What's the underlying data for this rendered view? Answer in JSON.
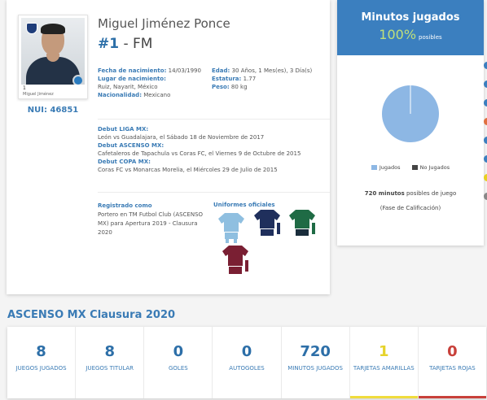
{
  "player": {
    "photo_number": "1",
    "photo_name": "Miguel Jiménez",
    "nui": "NUI: 46851",
    "name": "Miguel Jiménez Ponce",
    "number": "#1",
    "separator": " - ",
    "position": "FM"
  },
  "details": {
    "birth_date_label": "Fecha de nacimiento:",
    "birth_date": "14/03/1990",
    "birth_place_label": "Lugar de nacimiento:",
    "birth_place": "Ruiz, Nayarit, México",
    "nationality_label": "Nacionalidad:",
    "nationality": "Mexicano",
    "age_label": "Edad:",
    "age": "30 Años, 1 Mes(es), 3 Día(s)",
    "height_label": "Estatura:",
    "height": "1.77",
    "weight_label": "Peso:",
    "weight": "80 kg"
  },
  "debuts": {
    "liga_label": "Debut LIGA MX:",
    "liga": "León vs Guadalajara, el Sábado 18 de Noviembre de 2017",
    "ascenso_label": "Debut ASCENSO MX:",
    "ascenso": "Cafetaleros de Tapachula vs Coras FC, el Viernes 9 de Octubre de 2015",
    "copa_label": "Debut COPA MX:",
    "copa": "Coras FC vs Monarcas Morelia, el Miércoles 29 de Julio de 2015"
  },
  "registration": {
    "label": "Registrado como",
    "text": "Portero en TM Futbol Club (ASCENSO MX) para Apertura 2019 - Clausura 2020"
  },
  "uniforms": {
    "title": "Uniformes oficiales",
    "items": [
      {
        "name": "light-blue-uniform",
        "shirt": "#8fbfe0",
        "shorts": "#8fbfe0",
        "socks": "#8fbfe0"
      },
      {
        "name": "navy-uniform",
        "shirt": "#1f2f5c",
        "shorts": "#1f2f5c",
        "socks": "#1f2f5c"
      },
      {
        "name": "green-uniform",
        "shirt": "#1f6b45",
        "shorts": "#1a2d3c",
        "socks": "#1f6b45"
      },
      {
        "name": "maroon-uniform",
        "shirt": "#7a1f33",
        "shorts": "#7a1f33",
        "socks": "#7a1f33"
      }
    ]
  },
  "minutes": {
    "title": "Minutos jugados",
    "percent": "100%",
    "percent_label": "posibles",
    "legend_played": "Jugados",
    "legend_not_played": "No Jugados",
    "color_played": "#8db7e4",
    "color_not_played": "#444444",
    "possible_value": "720 minutos",
    "possible_text": " posibles de juego",
    "phase": "(Fase de Calificación)"
  },
  "chart_data": {
    "type": "pie",
    "slices": [
      {
        "label": "Jugados",
        "value": 100
      },
      {
        "label": "No Jugados",
        "value": 0
      }
    ],
    "legend_position": "bottom"
  },
  "side_dots": [
    "#3b7fbf",
    "#3b7fbf",
    "#3b7fbf",
    "#e07040",
    "#3b7fbf",
    "#3b7fbf",
    "#e8d020",
    "#888888"
  ],
  "season": {
    "title": "ASCENSO MX Clausura 2020",
    "stats": [
      {
        "value": "8",
        "label": "JUEGOS JUGADOS",
        "value_color": "#2d6fa8",
        "bar": ""
      },
      {
        "value": "8",
        "label": "JUEGOS TITULAR",
        "value_color": "#2d6fa8",
        "bar": ""
      },
      {
        "value": "0",
        "label": "GOLES",
        "value_color": "#2d6fa8",
        "bar": ""
      },
      {
        "value": "0",
        "label": "AUTOGOLES",
        "value_color": "#2d6fa8",
        "bar": ""
      },
      {
        "value": "720",
        "label": "MINUTOS JUGADOS",
        "value_color": "#2d6fa8",
        "bar": ""
      },
      {
        "value": "1",
        "label": "TARJETAS AMARILLAS",
        "value_color": "#e6d32a",
        "bar": "#f0dc3c"
      },
      {
        "value": "0",
        "label": "TARJETAS ROJAS",
        "value_color": "#c8403a",
        "bar": "#c8403a"
      }
    ]
  }
}
